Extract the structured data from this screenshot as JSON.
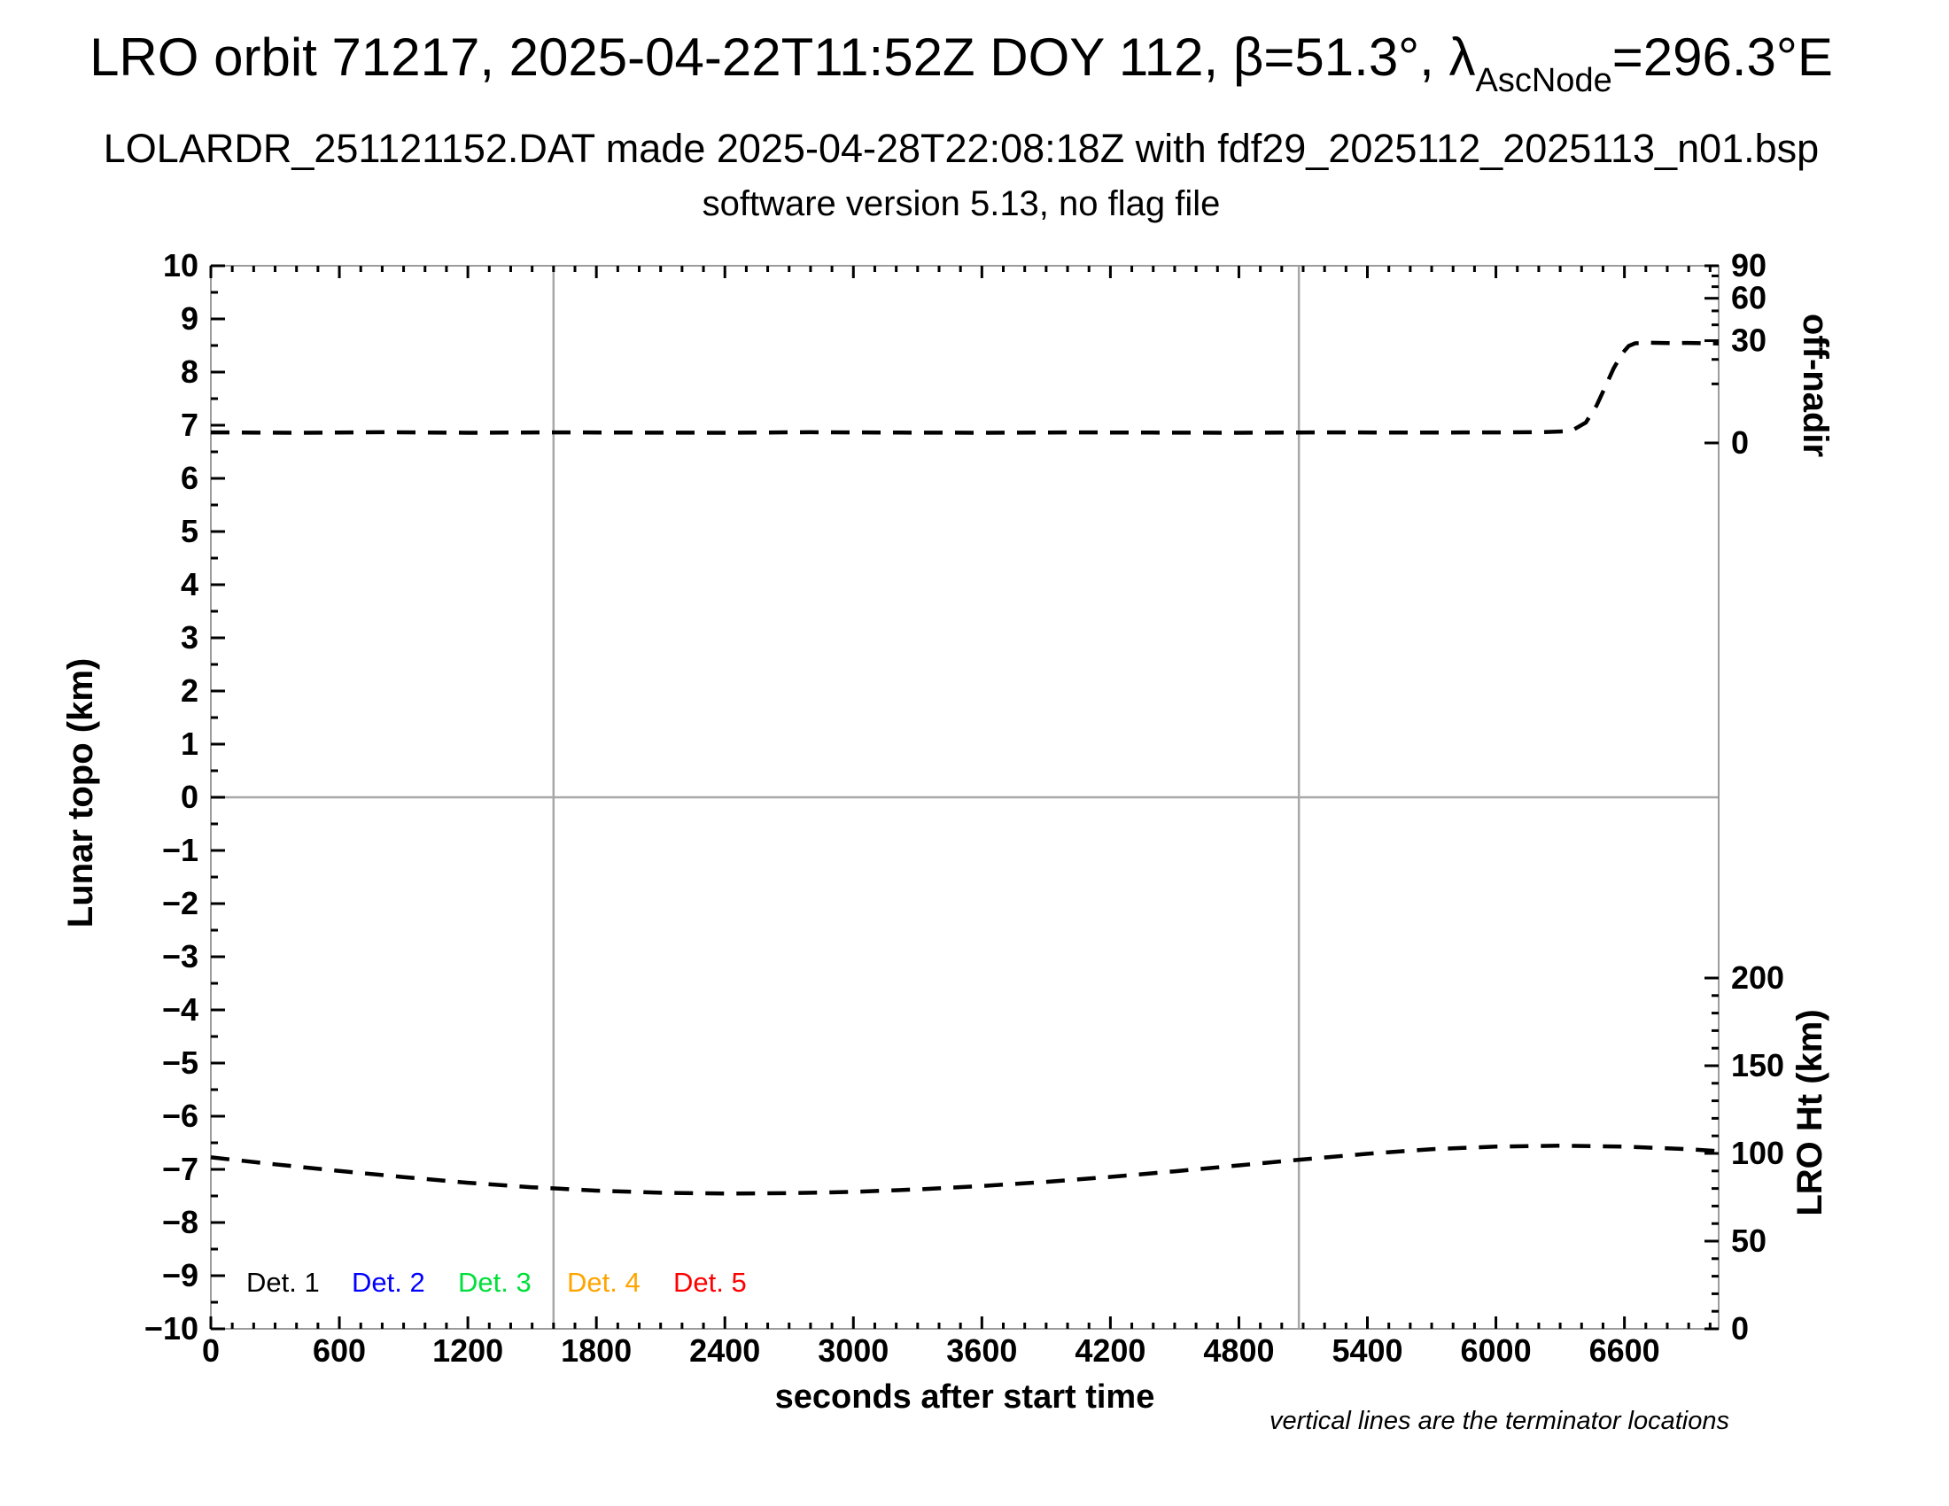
{
  "header": {
    "title_prefix": "LRO orbit 71217, 2025-04-22T11:52Z DOY 112, β=51.3°, λ",
    "title_subscript": "AscNode",
    "title_suffix": "=296.3°E",
    "subtitle": "LOLARDR_251121152.DAT made 2025-04-28T22:08:18Z with fdf29_2025112_2025113_n01.bsp",
    "version_line": "software version 5.13, no flag file"
  },
  "footnote": "vertical lines are the terminator locations",
  "legend": {
    "items": [
      {
        "label": "Det. 1",
        "color": "#000000"
      },
      {
        "label": "Det. 2",
        "color": "#0000ff"
      },
      {
        "label": "Det. 3",
        "color": "#00df3a"
      },
      {
        "label": "Det. 4",
        "color": "#ffa500"
      },
      {
        "label": "Det. 5",
        "color": "#ff0000"
      }
    ]
  },
  "colors": {
    "axis_frame": "#9c9c9c",
    "reference_line": "#a8a8a8",
    "tick": "#000000",
    "curve": "#000000"
  },
  "chart_data": {
    "type": "line",
    "title": "LRO orbit 71217, 2025-04-22T11:52Z DOY 112, beta=51.3 deg, lambda_AscNode=296.3 degE",
    "xlabel": "seconds after start time",
    "x_axis": {
      "min": 0,
      "max": 7040,
      "major_ticks": [
        0,
        600,
        1200,
        1800,
        2400,
        3000,
        3600,
        4200,
        4800,
        5400,
        6000,
        6600
      ],
      "minor_step": 100
    },
    "y_left": {
      "label": "Lunar topo (km)",
      "min": -10,
      "max": 10,
      "major_step": 1,
      "minor_step": 0.5,
      "labeled_ticks": [
        10,
        9,
        8,
        7,
        6,
        5,
        4,
        3,
        2,
        1,
        0,
        -1,
        -2,
        -3,
        -4,
        -5,
        -6,
        -7,
        -8,
        -9,
        -10
      ]
    },
    "y_right_off_nadir": {
      "label": "off-nadir",
      "scale": "sqrt",
      "min": 0,
      "max": 90,
      "labeled_ticks": [
        90,
        60,
        30,
        0
      ],
      "minor_ticks": [
        10,
        20,
        40,
        50,
        70,
        80
      ]
    },
    "y_right_lro_ht": {
      "label": "LRO Ht (km)",
      "min": 0,
      "max": 200,
      "labeled_ticks": [
        200,
        150,
        100,
        50,
        0
      ],
      "minor_step": 10
    },
    "reference_lines": {
      "horizontal_topo_zero": 0,
      "terminator_seconds": [
        1600,
        5080
      ]
    },
    "series": [
      {
        "name": "off-nadir angle (deg)",
        "axis": "off_nadir",
        "style": "dashed",
        "color": "#000000",
        "points": [
          [
            0,
            0.32
          ],
          [
            400,
            0.3
          ],
          [
            800,
            0.33
          ],
          [
            1200,
            0.3
          ],
          [
            1600,
            0.32
          ],
          [
            2000,
            0.31
          ],
          [
            2400,
            0.3
          ],
          [
            2800,
            0.33
          ],
          [
            3200,
            0.31
          ],
          [
            3600,
            0.3
          ],
          [
            4000,
            0.32
          ],
          [
            4400,
            0.31
          ],
          [
            4800,
            0.3
          ],
          [
            5200,
            0.32
          ],
          [
            5600,
            0.31
          ],
          [
            6000,
            0.32
          ],
          [
            6200,
            0.33
          ],
          [
            6350,
            0.4
          ],
          [
            6420,
            1.2
          ],
          [
            6470,
            4
          ],
          [
            6510,
            9
          ],
          [
            6550,
            16
          ],
          [
            6590,
            23
          ],
          [
            6620,
            27
          ],
          [
            6650,
            28.5
          ],
          [
            6720,
            28.8
          ],
          [
            6800,
            28.6
          ],
          [
            6900,
            28.7
          ],
          [
            7040,
            28.4
          ]
        ]
      },
      {
        "name": "LRO height (km)",
        "axis": "lro_ht",
        "style": "dashed",
        "color": "#000000",
        "points": [
          [
            0,
            97.8
          ],
          [
            300,
            93.8
          ],
          [
            600,
            90.0
          ],
          [
            900,
            86.5
          ],
          [
            1200,
            83.3
          ],
          [
            1500,
            80.7
          ],
          [
            1800,
            78.8
          ],
          [
            2100,
            77.6
          ],
          [
            2400,
            77.1
          ],
          [
            2700,
            77.3
          ],
          [
            3000,
            78.1
          ],
          [
            3300,
            79.5
          ],
          [
            3600,
            81.4
          ],
          [
            3900,
            83.8
          ],
          [
            4200,
            86.6
          ],
          [
            4500,
            89.8
          ],
          [
            4800,
            93.2
          ],
          [
            5100,
            96.6
          ],
          [
            5400,
            99.8
          ],
          [
            5700,
            102.4
          ],
          [
            6000,
            103.9
          ],
          [
            6300,
            104.4
          ],
          [
            6600,
            103.9
          ],
          [
            6900,
            102.4
          ],
          [
            7040,
            101.3
          ]
        ]
      }
    ]
  }
}
